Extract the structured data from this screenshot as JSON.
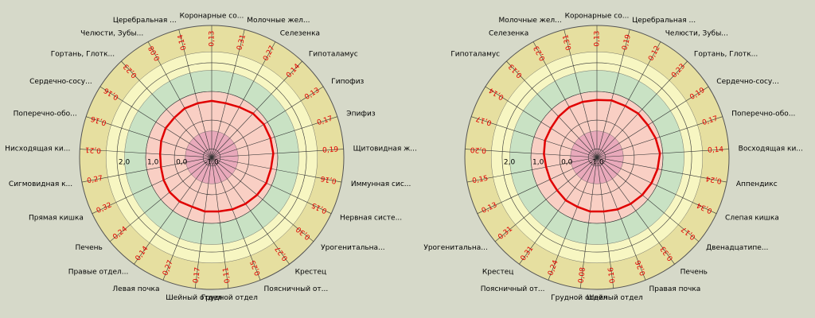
{
  "chart_data": [
    {
      "type": "radar",
      "categories": [
        "Коронарные со...",
        "Молочные жел...",
        "Селезенка",
        "Гипоталамус",
        "Гипофиз",
        "Эпифиз",
        "Щитовидная ж...",
        "Иммунная сис...",
        "Нервная систе...",
        "Урогенитальна...",
        "Крестец",
        "Поясничный от...",
        "Грудной отдел",
        "Шейный отдел",
        "Левая почка",
        "Правые отдел...",
        "Печень",
        "Прямая кишка",
        "Сигмовидная к...",
        "Нисходящая ки...",
        "Поперечно-обо...",
        "Сердечно-сосу...",
        "Гортань, Глотк...",
        "Челюсти, Зубы...",
        "Церебральная ..."
      ],
      "values": [
        0.13,
        0.31,
        0.27,
        0.14,
        0.13,
        0.17,
        0.19,
        0.16,
        0.15,
        0.3,
        0.27,
        0.25,
        0.11,
        0.17,
        0.27,
        0.14,
        0.24,
        0.32,
        0.27,
        0.21,
        0.16,
        0.16,
        0.23,
        0.08,
        0.14
      ],
      "value_labels": [
        "0,13",
        "0,31",
        "0,27",
        "0,14",
        "0,13",
        "0,17",
        "0,19",
        "0,16",
        "0,15",
        "0,30",
        "0,27",
        "0,25",
        "0,11",
        "0,17",
        "0,27",
        "0,14",
        "0,24",
        "0,32",
        "0,27",
        "0,21",
        "0,16",
        "0,16",
        "0,23",
        "0,08",
        "0,14"
      ],
      "series": [
        {
          "color": "#e00000",
          "values": [
            0.67,
            0.65,
            0.7,
            0.8,
            0.85,
            0.85,
            0.85,
            0.8,
            0.8,
            0.75,
            0.7,
            0.65,
            0.6,
            0.6,
            0.55,
            0.6,
            0.6,
            0.55,
            0.5,
            0.5,
            0.55,
            0.6,
            0.6,
            0.65,
            0.65
          ]
        }
      ],
      "rlim": [
        -1.3,
        3.3
      ],
      "rticks": [
        {
          "value": -1,
          "label": "-1,0"
        },
        {
          "value": 0,
          "label": "0,0"
        },
        {
          "value": 1,
          "label": "1,0"
        },
        {
          "value": 2,
          "label": "2,0"
        }
      ]
    },
    {
      "type": "radar",
      "categories": [
        "Коронарные со...",
        "Церебральная ...",
        "Челюсти, Зубы...",
        "Гортань, Глотк...",
        "Сердечно-сосу...",
        "Поперечно-обо...",
        "Восходящая ки...",
        "Аппендикс",
        "Слепая кишка",
        "Двенадцатипе...",
        "Печень",
        "Правая почка",
        "Шейный отдел",
        "Грудной отдел",
        "Поясничный от...",
        "Крестец",
        "Урогенитальна...",
        null,
        null,
        null,
        null,
        null,
        "Гипоталамус",
        "Селезенка",
        "Молочные жел..."
      ],
      "values": [
        0.13,
        0.19,
        0.12,
        0.23,
        0.19,
        0.17,
        0.14,
        0.24,
        0.34,
        0.17,
        0.33,
        0.26,
        0.16,
        0.08,
        0.24,
        0.31,
        0.31,
        0.13,
        0.15,
        0.2,
        0.17,
        0.14,
        0.13,
        0.23,
        0.31
      ],
      "value_labels": [
        "0,13",
        "0,19",
        "0,12",
        "0,23",
        "0,19",
        "0,17",
        "0,14",
        "0,24",
        "0,34",
        "0,17",
        "0,33",
        "0,26",
        "0,16",
        "0,08",
        "0,24",
        "0,31",
        "0,31",
        "0,13",
        "0,15",
        "0,20",
        "0,17",
        "0,14",
        "0,13",
        "0,23",
        "0,31"
      ],
      "series": [
        {
          "color": "#e00000",
          "values": [
            0.7,
            0.75,
            0.75,
            0.8,
            0.8,
            0.85,
            0.9,
            0.85,
            0.8,
            0.75,
            0.7,
            0.65,
            0.6,
            0.6,
            0.55,
            0.55,
            0.5,
            0.5,
            0.5,
            0.55,
            0.6,
            0.6,
            0.65,
            0.7,
            0.7
          ]
        }
      ],
      "rlim": [
        -1.3,
        3.3
      ],
      "rticks": [
        {
          "value": -1,
          "label": "-1,0"
        },
        {
          "value": 0,
          "label": "0,0"
        },
        {
          "value": 1,
          "label": "1,0"
        },
        {
          "value": 2,
          "label": "2,0"
        }
      ]
    }
  ]
}
